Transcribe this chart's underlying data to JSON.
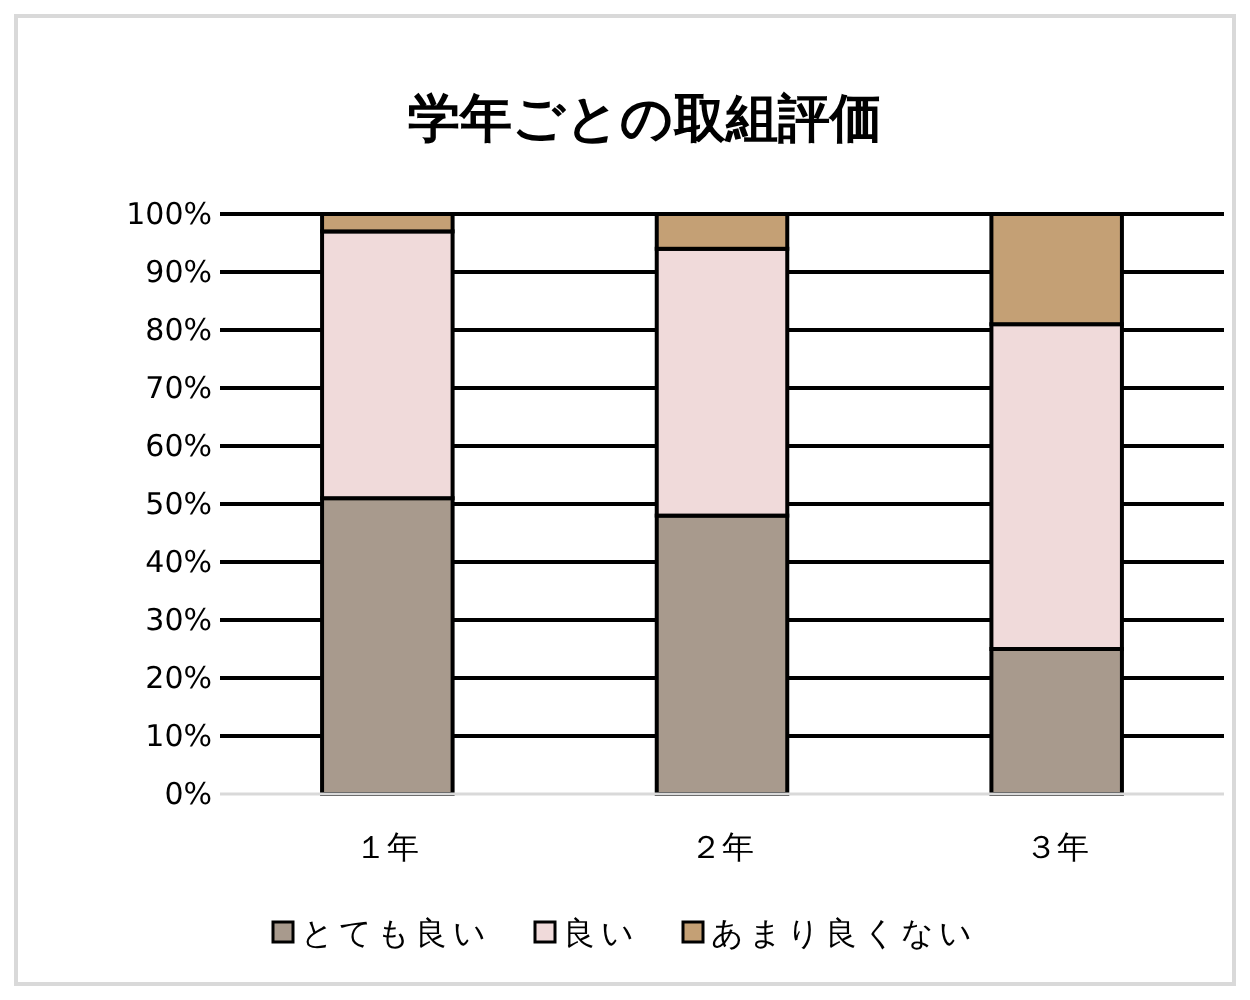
{
  "chart_data": {
    "type": "bar",
    "stacked": true,
    "title": "学年ごとの取組評価",
    "categories": [
      "１年",
      "２年",
      "３年"
    ],
    "series": [
      {
        "name": "とても良い",
        "color": "#a89a8d",
        "values": [
          51,
          48,
          25
        ]
      },
      {
        "name": "良い",
        "color": "#f0dada",
        "values": [
          46,
          46,
          56
        ]
      },
      {
        "name": "あまり良くない",
        "color": "#c4a075",
        "values": [
          3,
          6,
          19
        ]
      }
    ],
    "ylim": [
      0,
      100
    ],
    "yticks": [
      {
        "value": 0,
        "label": "0%"
      },
      {
        "value": 10,
        "label": "10%"
      },
      {
        "value": 20,
        "label": "20%"
      },
      {
        "value": 30,
        "label": "30%"
      },
      {
        "value": 40,
        "label": "40%"
      },
      {
        "value": 50,
        "label": "50%"
      },
      {
        "value": 60,
        "label": "60%"
      },
      {
        "value": 70,
        "label": "70%"
      },
      {
        "value": 80,
        "label": "80%"
      },
      {
        "value": 90,
        "label": "90%"
      },
      {
        "value": 100,
        "label": "100%"
      }
    ],
    "grid": "y",
    "legend": "bottom"
  }
}
